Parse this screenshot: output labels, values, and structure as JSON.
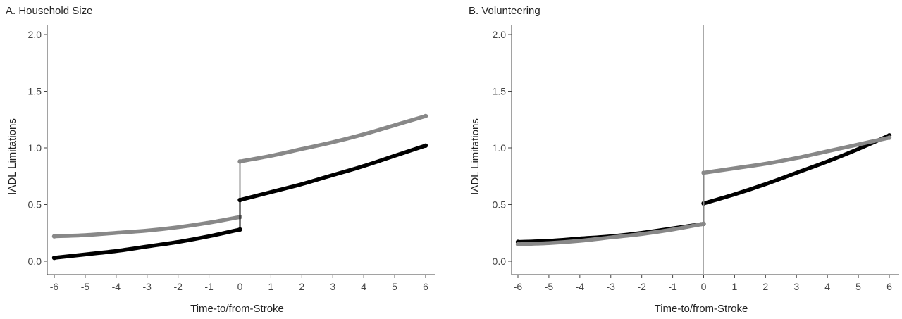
{
  "chart_data": [
    {
      "type": "line",
      "title": "A. Household Size",
      "xlabel": "Time-to/from-Stroke",
      "ylabel": "IADL Limitations",
      "xlim": [
        -6,
        6
      ],
      "ylim": [
        0.0,
        2.0
      ],
      "x_ticks": [
        -6,
        -5,
        -4,
        -3,
        -2,
        -1,
        0,
        1,
        2,
        3,
        4,
        5,
        6
      ],
      "y_ticks": [
        "0.0",
        "0.5",
        "1.0",
        "1.5",
        "2.0"
      ],
      "vertical_line_at": 0,
      "grid": false,
      "series": [
        {
          "color": "#888888",
          "pre": {
            "x": [
              -6,
              -5,
              -4,
              -3,
              -2,
              -1,
              0
            ],
            "y": [
              0.22,
              0.23,
              0.25,
              0.27,
              0.3,
              0.34,
              0.39
            ]
          },
          "post": {
            "x": [
              0,
              1,
              2,
              3,
              4,
              5,
              6
            ],
            "y": [
              0.88,
              0.93,
              0.99,
              1.05,
              1.12,
              1.2,
              1.28
            ]
          }
        },
        {
          "color": "#000000",
          "pre": {
            "x": [
              -6,
              -5,
              -4,
              -3,
              -2,
              -1,
              0
            ],
            "y": [
              0.03,
              0.06,
              0.09,
              0.13,
              0.17,
              0.22,
              0.28
            ]
          },
          "post": {
            "x": [
              0,
              1,
              2,
              3,
              4,
              5,
              6
            ],
            "y": [
              0.54,
              0.61,
              0.68,
              0.76,
              0.84,
              0.93,
              1.02
            ]
          }
        }
      ]
    },
    {
      "type": "line",
      "title": "B. Volunteering",
      "xlabel": "Time-to/from-Stroke",
      "ylabel": "IADL Limitations",
      "xlim": [
        -6,
        6
      ],
      "ylim": [
        0.0,
        2.0
      ],
      "x_ticks": [
        -6,
        -5,
        -4,
        -3,
        -2,
        -1,
        0,
        1,
        2,
        3,
        4,
        5,
        6
      ],
      "y_ticks": [
        "0.0",
        "0.5",
        "1.0",
        "1.5",
        "2.0"
      ],
      "vertical_line_at": 0,
      "grid": false,
      "series": [
        {
          "color": "#000000",
          "pre": {
            "x": [
              -6,
              -5,
              -4,
              -3,
              -2,
              -1,
              0
            ],
            "y": [
              0.17,
              0.18,
              0.2,
              0.22,
              0.25,
              0.29,
              0.33
            ]
          },
          "post": {
            "x": [
              0,
              1,
              2,
              3,
              4,
              5,
              6
            ],
            "y": [
              0.51,
              0.59,
              0.68,
              0.78,
              0.88,
              0.99,
              1.11
            ]
          }
        },
        {
          "color": "#888888",
          "pre": {
            "x": [
              -6,
              -5,
              -4,
              -3,
              -2,
              -1,
              0
            ],
            "y": [
              0.15,
              0.16,
              0.18,
              0.21,
              0.24,
              0.28,
              0.33
            ]
          },
          "post": {
            "x": [
              0,
              1,
              2,
              3,
              4,
              5,
              6
            ],
            "y": [
              0.78,
              0.82,
              0.86,
              0.91,
              0.97,
              1.03,
              1.09
            ]
          }
        }
      ]
    }
  ]
}
